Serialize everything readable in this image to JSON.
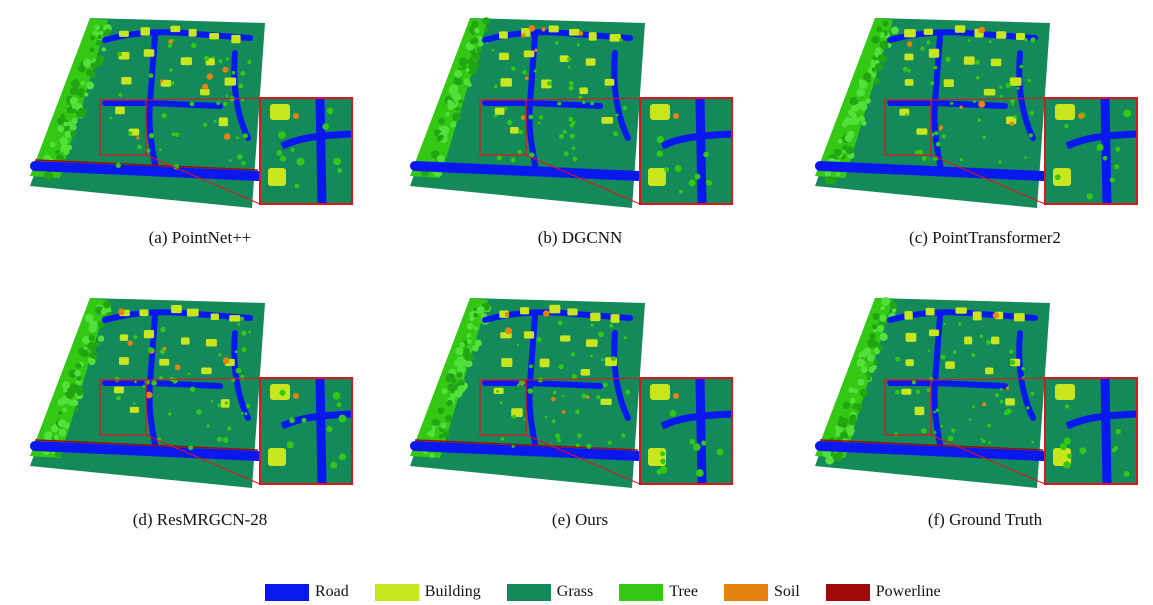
{
  "panels": [
    {
      "caption": "(a) PointNet++",
      "variant": "a"
    },
    {
      "caption": "(b) DGCNN",
      "variant": "b"
    },
    {
      "caption": "(c) PointTransformer2",
      "variant": "c"
    },
    {
      "caption": "(d) ResMRGCN-28",
      "variant": "d"
    },
    {
      "caption": "(e) Ours",
      "variant": "e"
    },
    {
      "caption": "(f) Ground Truth",
      "variant": "f"
    }
  ],
  "legend": [
    {
      "label": "Road",
      "color": "#0a18f0"
    },
    {
      "label": "Building",
      "color": "#c8e61e"
    },
    {
      "label": "Grass",
      "color": "#148a5a"
    },
    {
      "label": "Tree",
      "color": "#32c814"
    },
    {
      "label": "Soil",
      "color": "#e6820f"
    },
    {
      "label": "Powerline",
      "color": "#a00a0a"
    }
  ],
  "colors": {
    "zoom_frame": "#e0141e",
    "road": "#0a18f0",
    "building": "#c8e61e",
    "grass": "#148a5a",
    "tree": "#32c814",
    "soil": "#e6820f",
    "powerline": "#a00a0a"
  }
}
